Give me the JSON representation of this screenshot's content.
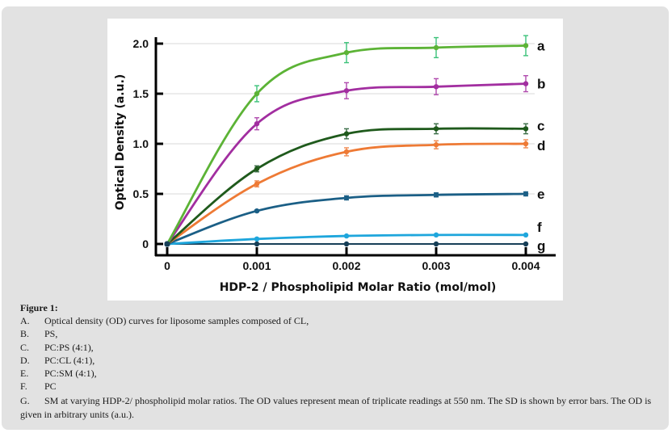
{
  "chart_data": {
    "type": "line",
    "title": "",
    "xlabel": "HDP-2 / Phospholipid Molar Ratio (mol/mol)",
    "ylabel": "Optical Density (a.u.)",
    "x": [
      0,
      0.001,
      0.002,
      0.003,
      0.004
    ],
    "x_tick_labels": [
      "0",
      "0.001",
      "0.002",
      "0.003",
      "0.004"
    ],
    "y_ticks": [
      0,
      0.5,
      1.0,
      1.5,
      2.0
    ],
    "y_tick_labels": [
      "0",
      "0.5",
      "1.0",
      "1.5",
      "2.0"
    ],
    "xlim": [
      0,
      0.004
    ],
    "ylim": [
      0,
      2.0
    ],
    "grid": "horizontal",
    "legend": "direct labels at right end of each curve",
    "series": [
      {
        "name": "a",
        "color": "#5cb336",
        "error_color": "#3cc27a",
        "values": [
          0,
          1.5,
          1.91,
          1.96,
          1.98
        ],
        "errors": [
          0,
          0.08,
          0.1,
          0.1,
          0.1
        ]
      },
      {
        "name": "b",
        "color": "#a22ea0",
        "error_color": "#b04aae",
        "values": [
          0,
          1.2,
          1.53,
          1.57,
          1.6
        ],
        "errors": [
          0,
          0.06,
          0.08,
          0.08,
          0.08
        ]
      },
      {
        "name": "c",
        "color": "#1f5a1c",
        "error_color": "#3c6e48",
        "values": [
          0,
          0.75,
          1.1,
          1.15,
          1.15
        ],
        "errors": [
          0,
          0.03,
          0.05,
          0.05,
          0.05
        ]
      },
      {
        "name": "d",
        "color": "#ee7a35",
        "error_color": "#f08a50",
        "values": [
          0,
          0.6,
          0.92,
          0.99,
          1.0
        ],
        "errors": [
          0,
          0.03,
          0.04,
          0.04,
          0.04
        ]
      },
      {
        "name": "e",
        "color": "#1b5f86",
        "error_color": "#1b5f86",
        "values": [
          0,
          0.33,
          0.46,
          0.49,
          0.5
        ],
        "errors": [
          0,
          0.01,
          0.02,
          0.02,
          0.02
        ]
      },
      {
        "name": "f",
        "color": "#1ea6dc",
        "error_color": "#1ea6dc",
        "values": [
          0,
          0.05,
          0.08,
          0.09,
          0.09
        ],
        "errors": [
          0,
          0,
          0,
          0,
          0
        ]
      },
      {
        "name": "g",
        "color": "#173f58",
        "error_color": "#173f58",
        "values": [
          0,
          0,
          0,
          0,
          0
        ],
        "errors": [
          0,
          0,
          0,
          0,
          0
        ]
      }
    ]
  },
  "caption": {
    "title": "Figure 1:",
    "items": [
      {
        "marker": "A.",
        "text": "Optical density (OD) curves for liposome samples composed of CL,"
      },
      {
        "marker": "B.",
        "text": "PS,"
      },
      {
        "marker": "C.",
        "text": "PC:PS (4:1),"
      },
      {
        "marker": "D.",
        "text": "PC:CL (4:1),"
      },
      {
        "marker": "E.",
        "text": "PC:SM (4:1),"
      },
      {
        "marker": "F.",
        "text": "PC"
      },
      {
        "marker": "G.",
        "text": "SM at varying HDP-2/ phospholipid molar ratios. The OD values represent mean of triplicate readings at 550 nm. The SD is shown by error bars. The OD is given in arbitrary units (a.u.)."
      }
    ]
  }
}
